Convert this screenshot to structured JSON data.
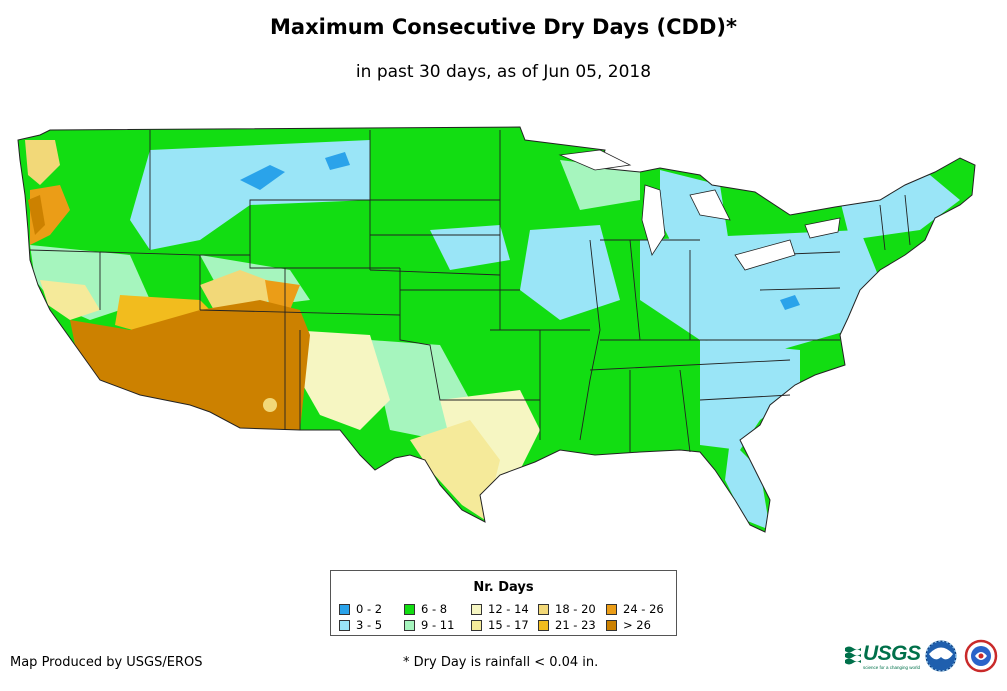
{
  "title": "Maximum Consecutive Dry Days (CDD)*",
  "subtitle": "in past 30 days, as of Jun 05, 2018",
  "legend": {
    "title": "Nr. Days",
    "items": [
      {
        "label": "0 - 2",
        "color": "#2aa3ea"
      },
      {
        "label": "3 - 5",
        "color": "#9ae5f7"
      },
      {
        "label": "6 - 8",
        "color": "#12dd12"
      },
      {
        "label": "9 - 11",
        "color": "#a6f5be"
      },
      {
        "label": "12 - 14",
        "color": "#f6f6c2"
      },
      {
        "label": "15 - 17",
        "color": "#f5ea9a"
      },
      {
        "label": "18 - 20",
        "color": "#f2d878"
      },
      {
        "label": "21 - 23",
        "color": "#f2bc1e"
      },
      {
        "label": "24 - 26",
        "color": "#eb9d17"
      },
      {
        "label": "> 26",
        "color": "#cc8100"
      }
    ]
  },
  "credit": "Map Produced by USGS/EROS",
  "footnote": "* Dry Day is rainfall < 0.04 in.",
  "logos": {
    "usgs_text": "USGS",
    "usgs_tagline": "science for a changing world"
  }
}
